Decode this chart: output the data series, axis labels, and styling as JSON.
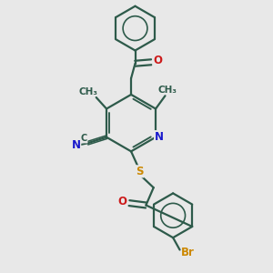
{
  "bg_color": "#e8e8e8",
  "bond_color": "#2d5a4a",
  "bond_width": 1.6,
  "atom_colors": {
    "N": "#1a1acc",
    "O": "#cc1a1a",
    "S": "#cc8800",
    "Br": "#cc8800",
    "C": "#2d5a4a"
  },
  "font_size_atom": 8.5,
  "font_size_label": 7.5
}
